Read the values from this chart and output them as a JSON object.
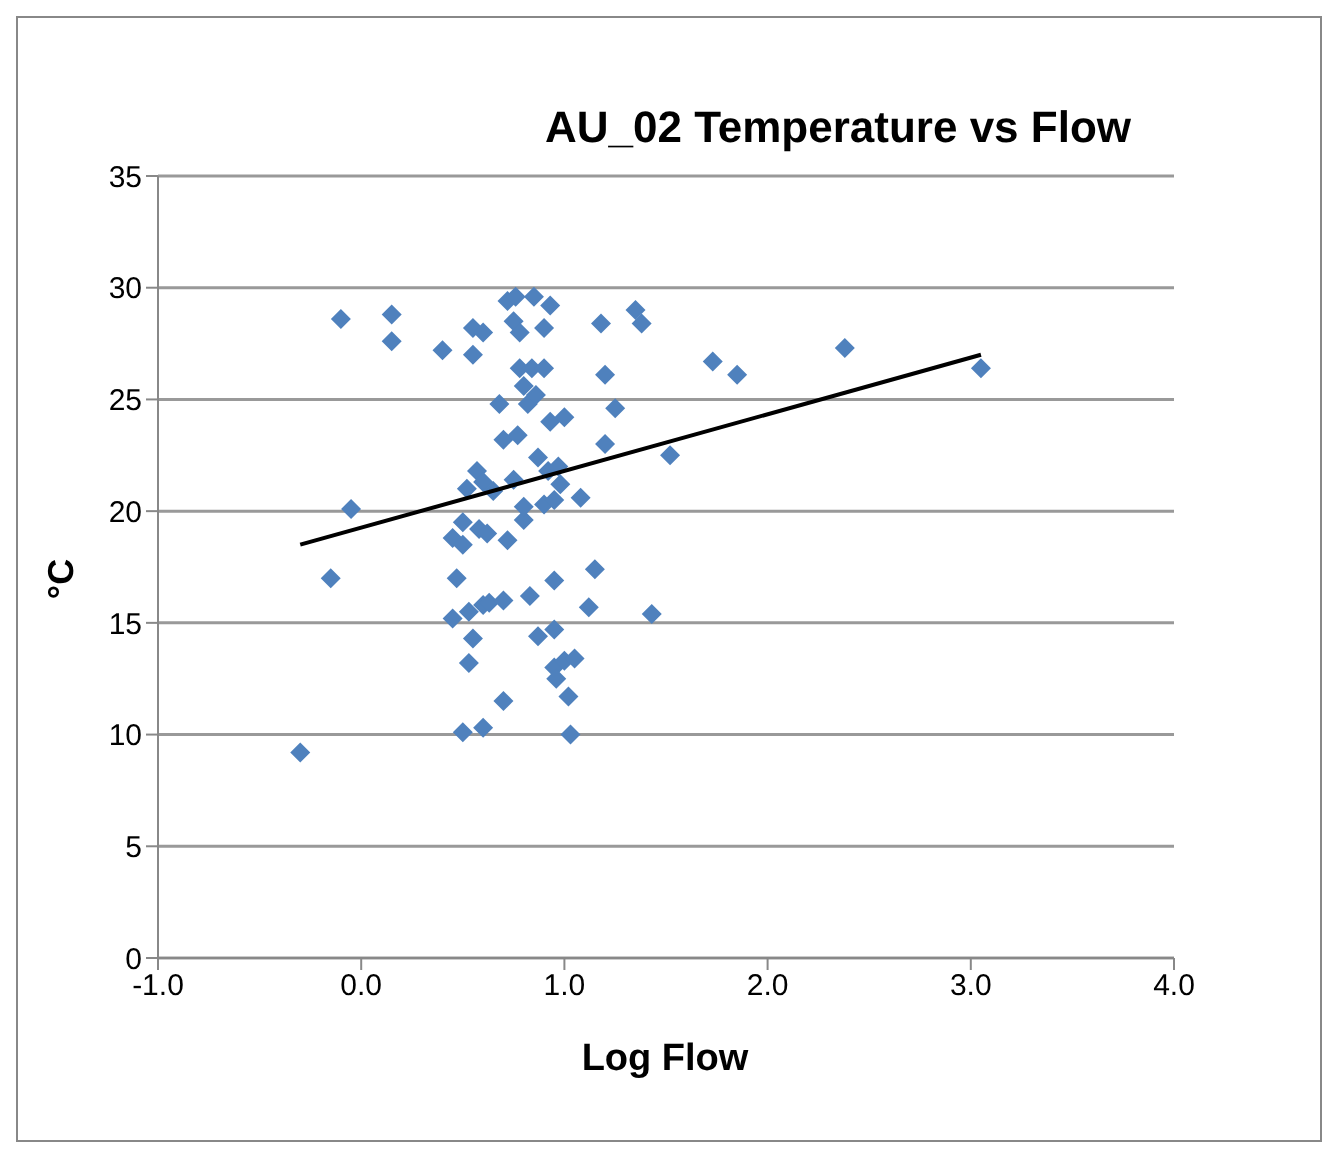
{
  "chart_data": {
    "type": "scatter",
    "title": "AU_02 Temperature vs Flow",
    "xlabel": "Log Flow",
    "ylabel": "°C",
    "marker": "diamond",
    "grid": "y",
    "xlim": [
      -1,
      4
    ],
    "xticks": [
      {
        "value": -1,
        "label": "-1.0"
      },
      {
        "value": 0,
        "label": "0.0"
      },
      {
        "value": 1,
        "label": "1.0"
      },
      {
        "value": 2,
        "label": "2.0"
      },
      {
        "value": 3,
        "label": "3.0"
      },
      {
        "value": 4,
        "label": "4.0"
      }
    ],
    "ylim": [
      0,
      35
    ],
    "yticks": [
      0,
      5,
      10,
      15,
      20,
      25,
      30,
      35
    ],
    "series": [
      {
        "color": "#4f81bd",
        "x": [
          -0.3,
          -0.15,
          -0.1,
          -0.05,
          0.15,
          0.15,
          0.4,
          0.45,
          0.45,
          0.47,
          0.5,
          0.5,
          0.5,
          0.52,
          0.53,
          0.53,
          0.55,
          0.55,
          0.55,
          0.57,
          0.58,
          0.6,
          0.6,
          0.6,
          0.6,
          0.62,
          0.63,
          0.65,
          0.68,
          0.7,
          0.7,
          0.7,
          0.72,
          0.72,
          0.75,
          0.75,
          0.76,
          0.77,
          0.78,
          0.78,
          0.8,
          0.8,
          0.8,
          0.82,
          0.83,
          0.84,
          0.85,
          0.86,
          0.87,
          0.87,
          0.9,
          0.9,
          0.9,
          0.92,
          0.93,
          0.93,
          0.95,
          0.95,
          0.95,
          0.95,
          0.96,
          0.97,
          0.98,
          1.0,
          1.0,
          1.02,
          1.03,
          1.05,
          1.08,
          1.12,
          1.15,
          1.18,
          1.2,
          1.2,
          1.25,
          1.35,
          1.38,
          1.43,
          1.52,
          1.73,
          1.85,
          2.38,
          3.05
        ],
        "values": [
          9.2,
          17.0,
          28.6,
          20.1,
          28.8,
          27.6,
          27.2,
          18.8,
          15.2,
          17.0,
          10.1,
          18.5,
          19.5,
          21.0,
          13.2,
          15.5,
          14.3,
          27.0,
          28.2,
          21.8,
          19.2,
          10.3,
          15.8,
          21.3,
          28.0,
          19.0,
          15.9,
          20.9,
          24.8,
          11.5,
          16.0,
          23.2,
          29.4,
          18.7,
          28.5,
          21.4,
          29.6,
          23.4,
          28.0,
          26.4,
          25.6,
          19.6,
          20.2,
          24.8,
          16.2,
          26.4,
          29.6,
          25.2,
          14.4,
          22.4,
          28.2,
          26.4,
          20.3,
          21.8,
          24.0,
          29.2,
          13.0,
          14.7,
          16.9,
          20.5,
          12.5,
          22.0,
          21.2,
          24.2,
          13.3,
          11.7,
          10.0,
          13.4,
          20.6,
          15.7,
          17.4,
          28.4,
          26.1,
          23.0,
          24.6,
          29.0,
          28.4,
          15.4,
          22.5,
          26.7,
          26.1,
          27.3,
          26.4
        ]
      },
      {
        "type": "line",
        "marker": "none",
        "color": "#000000",
        "x": [
          -0.3,
          3.05
        ],
        "values": [
          18.5,
          27.0
        ]
      }
    ]
  }
}
